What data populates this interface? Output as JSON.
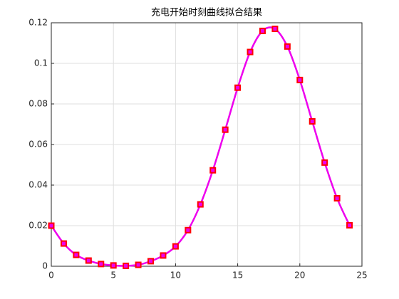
{
  "chart_data": {
    "type": "line",
    "title": "充电开始时刻曲线拟合结果",
    "x": [
      0,
      1,
      2,
      3,
      4,
      5,
      6,
      7,
      8,
      9,
      10,
      11,
      12,
      13,
      14,
      15,
      16,
      17,
      18,
      19,
      20,
      21,
      22,
      23,
      24
    ],
    "series": [
      {
        "color": "#ee00ee",
        "style": "line",
        "values": [
          0.02,
          0.0112,
          0.0056,
          0.0028,
          0.0011,
          0.0004,
          0.0002,
          0.0007,
          0.0025,
          0.0053,
          0.0098,
          0.0178,
          0.0305,
          0.0473,
          0.0673,
          0.088,
          0.1056,
          0.116,
          0.117,
          0.1083,
          0.0918,
          0.0714,
          0.0511,
          0.0335,
          0.0202
        ]
      },
      {
        "color": "#ff0000",
        "style": "marker",
        "values": [
          0.02,
          0.0112,
          0.0056,
          0.0028,
          0.0011,
          0.0004,
          0.0002,
          0.0007,
          0.0025,
          0.0053,
          0.0098,
          0.0178,
          0.0305,
          0.0473,
          0.0673,
          0.088,
          0.1056,
          0.116,
          0.117,
          0.1083,
          0.0918,
          0.0714,
          0.0511,
          0.0335,
          0.0202
        ]
      }
    ],
    "xlim": [
      0,
      25
    ],
    "xticks": [
      0,
      5,
      10,
      15,
      20,
      25
    ],
    "ylim": [
      0,
      0.12
    ],
    "yticks": [
      0,
      0.02,
      0.04,
      0.06,
      0.08,
      0.1,
      0.12
    ],
    "grid": true
  }
}
